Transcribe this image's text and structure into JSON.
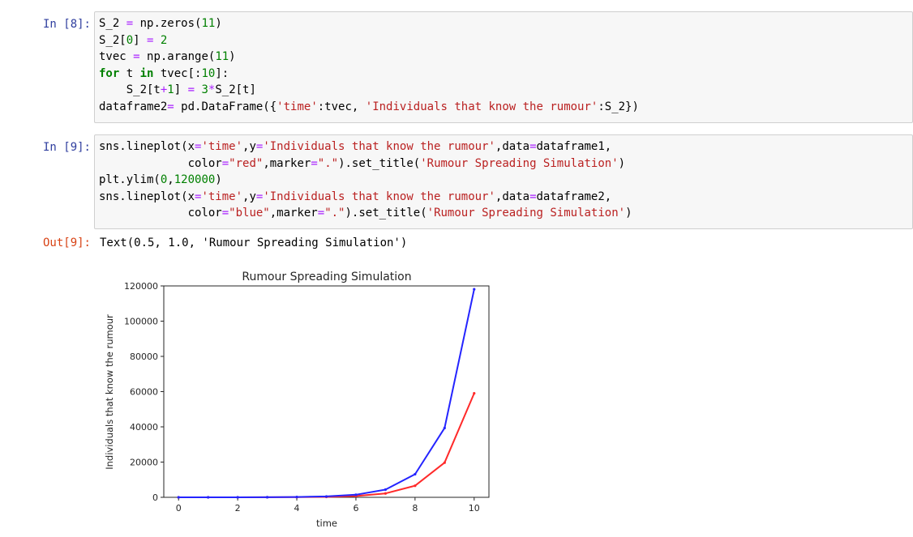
{
  "cells": [
    {
      "prompt": "In [8]:",
      "lines": [
        [
          {
            "t": "S_2 "
          },
          {
            "t": "=",
            "c": "op"
          },
          {
            "t": " np.zeros("
          },
          {
            "t": "11",
            "c": "num"
          },
          {
            "t": ")"
          }
        ],
        [
          {
            "t": "S_2["
          },
          {
            "t": "0",
            "c": "num"
          },
          {
            "t": "] "
          },
          {
            "t": "=",
            "c": "op"
          },
          {
            "t": " "
          },
          {
            "t": "2",
            "c": "num"
          }
        ],
        [
          {
            "t": "tvec "
          },
          {
            "t": "=",
            "c": "op"
          },
          {
            "t": " np.arange("
          },
          {
            "t": "11",
            "c": "num"
          },
          {
            "t": ")"
          }
        ],
        [
          {
            "t": "for",
            "c": "kw"
          },
          {
            "t": " t "
          },
          {
            "t": "in",
            "c": "kw"
          },
          {
            "t": " tvec[:"
          },
          {
            "t": "10",
            "c": "num"
          },
          {
            "t": "]:"
          }
        ],
        [
          {
            "t": "    S_2[t"
          },
          {
            "t": "+",
            "c": "op"
          },
          {
            "t": "1",
            "c": "num"
          },
          {
            "t": "] "
          },
          {
            "t": "=",
            "c": "op"
          },
          {
            "t": " "
          },
          {
            "t": "3",
            "c": "num"
          },
          {
            "t": "*",
            "c": "op"
          },
          {
            "t": "S_2[t]"
          }
        ],
        [
          {
            "t": "dataframe2"
          },
          {
            "t": "=",
            "c": "op"
          },
          {
            "t": " pd.DataFrame({"
          },
          {
            "t": "'time'",
            "c": "str"
          },
          {
            "t": ":tvec, "
          },
          {
            "t": "'Individuals that know the rumour'",
            "c": "str"
          },
          {
            "t": ":S_2})"
          }
        ]
      ]
    },
    {
      "prompt": "In [9]:",
      "lines": [
        [
          {
            "t": "sns.lineplot(x"
          },
          {
            "t": "=",
            "c": "op"
          },
          {
            "t": "'time'",
            "c": "str"
          },
          {
            "t": ",y"
          },
          {
            "t": "=",
            "c": "op"
          },
          {
            "t": "'Individuals that know the rumour'",
            "c": "str"
          },
          {
            "t": ",data"
          },
          {
            "t": "=",
            "c": "op"
          },
          {
            "t": "dataframe1,"
          }
        ],
        [
          {
            "t": "             color"
          },
          {
            "t": "=",
            "c": "op"
          },
          {
            "t": "\"red\"",
            "c": "str"
          },
          {
            "t": ",marker"
          },
          {
            "t": "=",
            "c": "op"
          },
          {
            "t": "\".\"",
            "c": "str"
          },
          {
            "t": ").set_title("
          },
          {
            "t": "'Rumour Spreading Simulation'",
            "c": "str"
          },
          {
            "t": ")"
          }
        ],
        [
          {
            "t": "plt.ylim("
          },
          {
            "t": "0",
            "c": "num"
          },
          {
            "t": ","
          },
          {
            "t": "120000",
            "c": "num"
          },
          {
            "t": ")"
          }
        ],
        [
          {
            "t": "sns.lineplot(x"
          },
          {
            "t": "=",
            "c": "op"
          },
          {
            "t": "'time'",
            "c": "str"
          },
          {
            "t": ",y"
          },
          {
            "t": "=",
            "c": "op"
          },
          {
            "t": "'Individuals that know the rumour'",
            "c": "str"
          },
          {
            "t": ",data"
          },
          {
            "t": "=",
            "c": "op"
          },
          {
            "t": "dataframe2,"
          }
        ],
        [
          {
            "t": "             color"
          },
          {
            "t": "=",
            "c": "op"
          },
          {
            "t": "\"blue\"",
            "c": "str"
          },
          {
            "t": ",marker"
          },
          {
            "t": "=",
            "c": "op"
          },
          {
            "t": "\".\"",
            "c": "str"
          },
          {
            "t": ").set_title("
          },
          {
            "t": "'Rumour Spreading Simulation'",
            "c": "str"
          },
          {
            "t": ")"
          }
        ]
      ]
    }
  ],
  "output": {
    "prompt": "Out[9]:",
    "text": "Text(0.5, 1.0, 'Rumour Spreading Simulation')"
  },
  "colors": {
    "prompt_in": "#303f9f",
    "prompt_out": "#d84315",
    "code_bg": "#f7f7f7",
    "series_red": "#ff2a2a",
    "series_blue": "#2424ff"
  },
  "chart_data": {
    "type": "line",
    "title": "Rumour Spreading Simulation",
    "xlabel": "time",
    "ylabel": "Individuals that know the rumour",
    "xlim": [
      -0.5,
      10.5
    ],
    "ylim": [
      0,
      120000
    ],
    "xticks": [
      0,
      2,
      4,
      6,
      8,
      10
    ],
    "yticks": [
      0,
      20000,
      40000,
      60000,
      80000,
      100000,
      120000
    ],
    "grid": false,
    "x": [
      0,
      1,
      2,
      3,
      4,
      5,
      6,
      7,
      8,
      9,
      10
    ],
    "series": [
      {
        "color": "#ff2a2a",
        "values": [
          1,
          3,
          9,
          27,
          81,
          243,
          729,
          2187,
          6561,
          19683,
          59049
        ]
      },
      {
        "color": "#2424ff",
        "values": [
          2,
          6,
          18,
          54,
          162,
          486,
          1458,
          4374,
          13122,
          39366,
          118098
        ]
      }
    ]
  }
}
